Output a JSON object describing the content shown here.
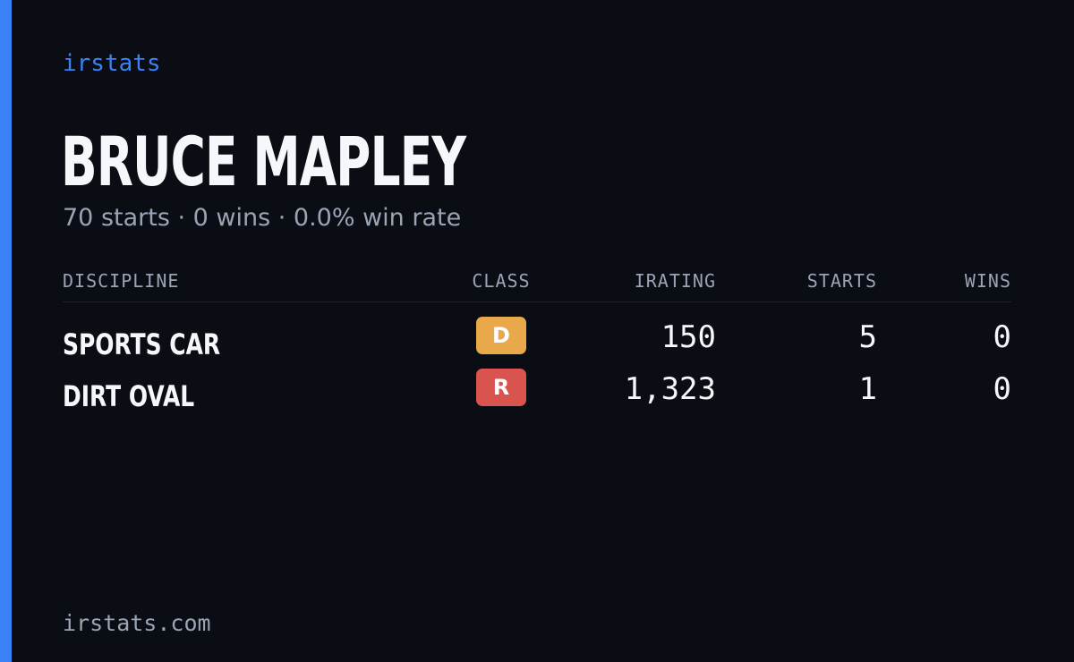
{
  "brand": "irstats",
  "driver": {
    "name": "BRUCE MAPLEY",
    "summary": "70 starts · 0 wins · 0.0% win rate"
  },
  "table": {
    "headers": [
      "DISCIPLINE",
      "CLASS",
      "IRATING",
      "STARTS",
      "WINS"
    ],
    "rows": [
      [
        "SPORTS CAR",
        "D",
        "150",
        "5",
        "0"
      ],
      [
        "DIRT OVAL",
        "R",
        "1,323",
        "1",
        "0"
      ]
    ]
  },
  "footer": "irstats.com"
}
